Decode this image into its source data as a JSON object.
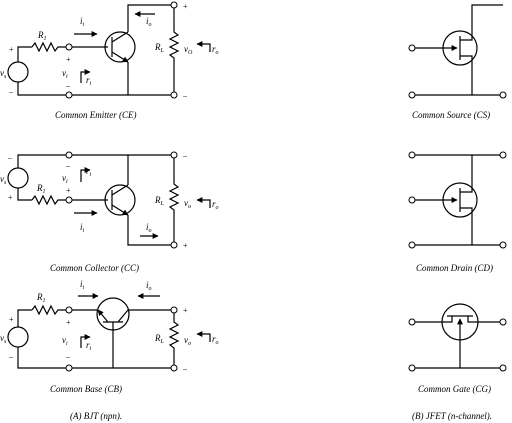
{
  "bjt": {
    "ce": {
      "caption": "Common Emitter (CE)",
      "labels": {
        "R1": "R",
        "R1_sub": "1",
        "RL": "R",
        "RL_sub": "L",
        "vs": "v",
        "vs_sub": "s",
        "vi": "v",
        "vi_sub": "i",
        "vo": "v",
        "vo_sub": "O",
        "ri": "r",
        "ri_sub": "i",
        "ro": "r",
        "ro_sub": "o",
        "ii": "i",
        "ii_sub": "i",
        "io": "i",
        "io_sub": "o"
      }
    },
    "cc": {
      "caption": "Common Collector (CC)",
      "labels": {
        "R1": "R",
        "R1_sub": "1",
        "RL": "R",
        "RL_sub": "L",
        "vs": "v",
        "vs_sub": "s",
        "vi": "v",
        "vi_sub": "i",
        "vo": "v",
        "vo_sub": "o",
        "ri": "r",
        "ri_sub": "i",
        "ro": "r",
        "ro_sub": "o",
        "ii": "i",
        "ii_sub": "i",
        "io": "i",
        "io_sub": "o"
      }
    },
    "cb": {
      "caption": "Common Base (CB)",
      "labels": {
        "R1": "R",
        "R1_sub": "1",
        "RL": "R",
        "RL_sub": "L",
        "vs": "v",
        "vs_sub": "s",
        "vi": "v",
        "vi_sub": "i",
        "vo": "v",
        "vo_sub": "o",
        "ri": "r",
        "ri_sub": "i",
        "ro": "r",
        "ro_sub": "o",
        "ii": "i",
        "ii_sub": "i",
        "io": "i",
        "io_sub": "o"
      }
    },
    "footer": "(A) BJT (npn)."
  },
  "jfet": {
    "cs": {
      "caption": "Common Source (CS)"
    },
    "cd": {
      "caption": "Common Drain (CD)"
    },
    "cg": {
      "caption": "Common Gate (CG)"
    },
    "footer": "(B) JFET (n-channel)."
  },
  "signs": {
    "plus": "+",
    "minus": "–"
  }
}
